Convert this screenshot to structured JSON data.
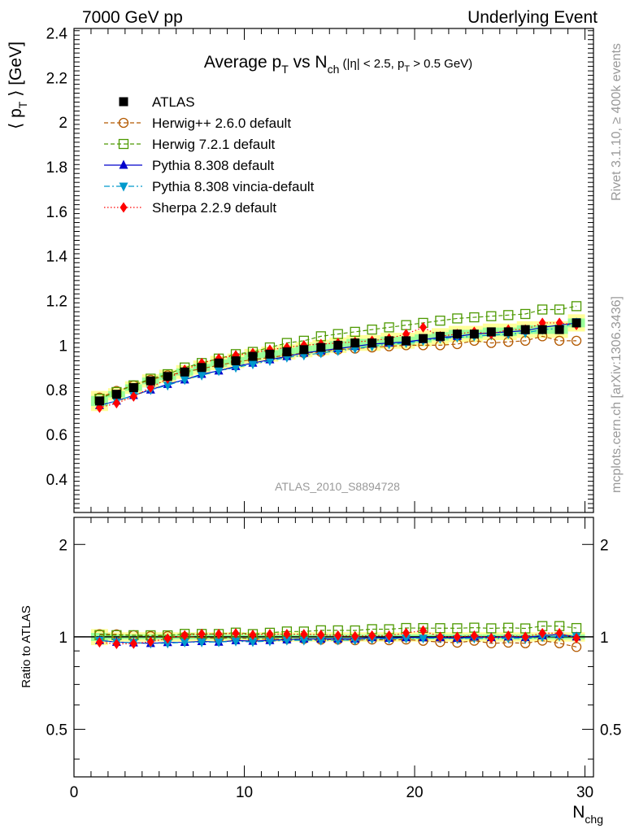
{
  "header": {
    "left": "7000 GeV pp",
    "right": "Underlying Event"
  },
  "side_text": {
    "rivet": "Rivet 3.1.10, ≥ 400k events",
    "mcplots": "mcplots.cern.ch [arXiv:1306.3436]"
  },
  "watermark": "ATLAS_2010_S8894728",
  "chart_data": {
    "type": "scatter",
    "title": "Average pT vs Nch (|η| < 2.5, pT > 0.5 GeV)",
    "ylabel": "⟨ pT ⟩ [GeV]",
    "xlabel": "Nchg",
    "ratio_ylabel": "Ratio to ATLAS",
    "xlim": [
      0,
      30.5
    ],
    "ylim": [
      0.25,
      2.42
    ],
    "ratio_ylim": [
      0.35,
      2.45
    ],
    "ratio_log_scale": true,
    "x_ticks": [
      "0",
      "10",
      "20",
      "30"
    ],
    "y_ticks": [
      "0.4",
      "0.6",
      "0.8",
      "1",
      "1.2",
      "1.4",
      "1.6",
      "1.8",
      "2",
      "2.2",
      "2.4"
    ],
    "ratio_ticks": [
      "0.5",
      "1",
      "2"
    ],
    "legend_position": "top-left",
    "x": [
      1.5,
      2.5,
      3.5,
      4.5,
      5.5,
      6.5,
      7.5,
      8.5,
      9.5,
      10.5,
      11.5,
      12.5,
      13.5,
      14.5,
      15.5,
      16.5,
      17.5,
      18.5,
      19.5,
      20.5,
      21.5,
      22.5,
      23.5,
      24.5,
      25.5,
      26.5,
      27.5,
      28.5,
      29.5
    ],
    "series": [
      {
        "name": "ATLAS",
        "color": "#000000",
        "marker": "square-filled",
        "line": "none",
        "values": [
          0.75,
          0.78,
          0.81,
          0.84,
          0.86,
          0.88,
          0.9,
          0.92,
          0.93,
          0.95,
          0.96,
          0.97,
          0.98,
          0.99,
          1.0,
          1.01,
          1.01,
          1.02,
          1.02,
          1.03,
          1.04,
          1.05,
          1.05,
          1.06,
          1.06,
          1.07,
          1.07,
          1.07,
          1.1
        ]
      },
      {
        "name": "Herwig++ 2.6.0 default",
        "color": "#b35900",
        "marker": "circle-open",
        "line": "dashed",
        "values": [
          0.765,
          0.795,
          0.82,
          0.845,
          0.865,
          0.88,
          0.895,
          0.91,
          0.925,
          0.935,
          0.945,
          0.955,
          0.965,
          0.97,
          0.98,
          0.985,
          0.99,
          0.995,
          1.0,
          1.0,
          1.0,
          1.005,
          1.02,
          1.01,
          1.015,
          1.02,
          1.04,
          1.02,
          1.02
        ]
      },
      {
        "name": "Herwig 7.2.1 default",
        "color": "#4d9900",
        "marker": "square-open",
        "line": "dashed",
        "values": [
          0.76,
          0.79,
          0.82,
          0.85,
          0.87,
          0.9,
          0.92,
          0.94,
          0.96,
          0.97,
          0.99,
          1.01,
          1.02,
          1.04,
          1.05,
          1.06,
          1.07,
          1.08,
          1.09,
          1.1,
          1.11,
          1.12,
          1.125,
          1.13,
          1.135,
          1.14,
          1.16,
          1.16,
          1.175
        ]
      },
      {
        "name": "Pythia 8.308 default",
        "color": "#0000cc",
        "marker": "triangle-up",
        "line": "solid",
        "values": [
          0.73,
          0.75,
          0.775,
          0.8,
          0.825,
          0.845,
          0.87,
          0.885,
          0.905,
          0.92,
          0.935,
          0.95,
          0.965,
          0.975,
          0.985,
          0.995,
          1.005,
          1.01,
          1.015,
          1.025,
          1.035,
          1.04,
          1.05,
          1.055,
          1.06,
          1.065,
          1.08,
          1.09,
          1.1
        ]
      },
      {
        "name": "Pythia 8.308 vincia-default",
        "color": "#0099cc",
        "marker": "triangle-down",
        "line": "dashdot",
        "values": [
          0.73,
          0.75,
          0.775,
          0.8,
          0.82,
          0.845,
          0.865,
          0.885,
          0.9,
          0.915,
          0.93,
          0.945,
          0.955,
          0.965,
          0.975,
          0.985,
          0.995,
          1.005,
          1.01,
          1.02,
          1.03,
          1.035,
          1.04,
          1.045,
          1.05,
          1.055,
          1.07,
          1.075,
          1.105
        ]
      },
      {
        "name": "Sherpa 2.2.9 default",
        "color": "#ff0000",
        "marker": "diamond",
        "line": "dotted",
        "values": [
          0.72,
          0.74,
          0.77,
          0.81,
          0.85,
          0.89,
          0.92,
          0.94,
          0.955,
          0.965,
          0.98,
          0.99,
          1.0,
          1.005,
          1.01,
          1.015,
          1.02,
          1.03,
          1.05,
          1.08,
          1.04,
          1.05,
          1.06,
          1.05,
          1.07,
          1.07,
          1.1,
          1.1,
          1.09
        ]
      }
    ]
  }
}
